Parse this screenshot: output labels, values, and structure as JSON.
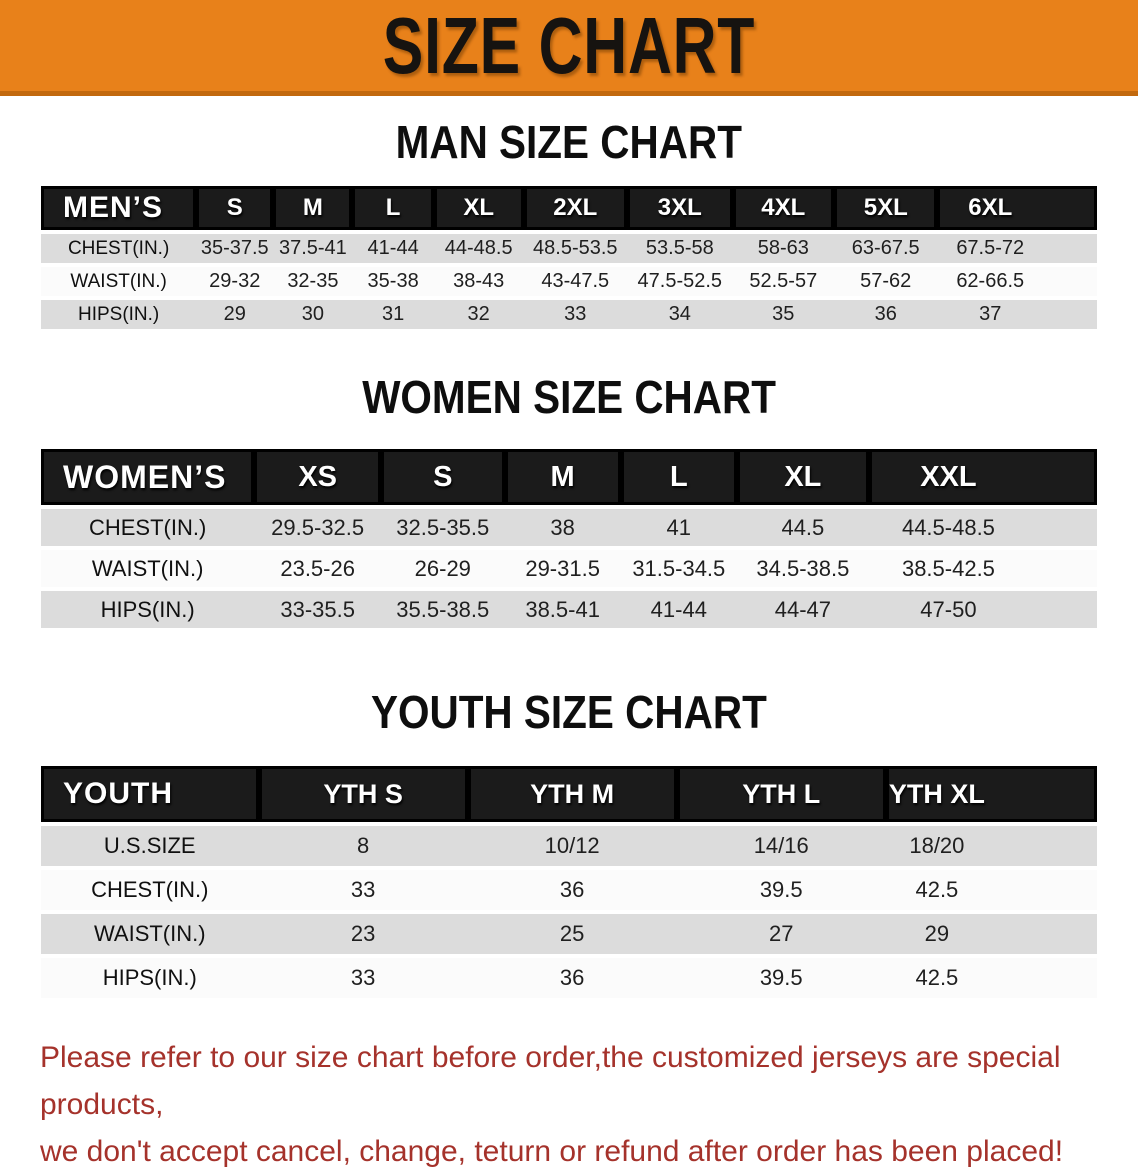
{
  "banner": {
    "title": "SIZE CHART"
  },
  "colors": {
    "banner_orange": "#E8811A",
    "banner_border": "#C2690E",
    "header_black": "#1B1B1B",
    "row_gray": "#DCDCDC",
    "row_white": "#FBFBFB",
    "note_red": "#A5322B"
  },
  "sections": {
    "men": {
      "title": "MAN SIZE CHART",
      "table": {
        "columns": [
          "MEN’S",
          "S",
          "M",
          "L",
          "XL",
          "2XL",
          "3XL",
          "4XL",
          "5XL",
          "6XL"
        ],
        "rows": [
          {
            "label": "CHEST(IN.)",
            "values": [
              "35-37.5",
              "37.5-41",
              "41-44",
              "44-48.5",
              "48.5-53.5",
              "53.5-58",
              "58-63",
              "63-67.5",
              "67.5-72"
            ]
          },
          {
            "label": "WAIST(IN.)",
            "values": [
              "29-32",
              "32-35",
              "35-38",
              "38-43",
              "43-47.5",
              "47.5-52.5",
              "52.5-57",
              "57-62",
              "62-66.5"
            ]
          },
          {
            "label": "HIPS(IN.)",
            "values": [
              "29",
              "30",
              "31",
              "32",
              "33",
              "34",
              "35",
              "36",
              "37"
            ]
          }
        ]
      }
    },
    "women": {
      "title": "WOMEN SIZE CHART",
      "table": {
        "columns": [
          "WOMEN’S",
          "XS",
          "S",
          "M",
          "L",
          "XL",
          "XXL"
        ],
        "rows": [
          {
            "label": "CHEST(IN.)",
            "values": [
              "29.5-32.5",
              "32.5-35.5",
              "38",
              "41",
              "44.5",
              "44.5-48.5"
            ]
          },
          {
            "label": "WAIST(IN.)",
            "values": [
              "23.5-26",
              "26-29",
              "29-31.5",
              "31.5-34.5",
              "34.5-38.5",
              "38.5-42.5"
            ]
          },
          {
            "label": "HIPS(IN.)",
            "values": [
              "33-35.5",
              "35.5-38.5",
              "38.5-41",
              "41-44",
              "44-47",
              "47-50"
            ]
          }
        ]
      }
    },
    "youth": {
      "title": "YOUTH SIZE CHART",
      "table": {
        "columns": [
          "YOUTH",
          "YTH S",
          "YTH M",
          "YTH L",
          "YTH XL"
        ],
        "rows": [
          {
            "label": "U.S.SIZE",
            "values": [
              "8",
              "10/12",
              "14/16",
              "18/20"
            ]
          },
          {
            "label": "CHEST(IN.)",
            "values": [
              "33",
              "36",
              "39.5",
              "42.5"
            ]
          },
          {
            "label": "WAIST(IN.)",
            "values": [
              "23",
              "25",
              "27",
              "29"
            ]
          },
          {
            "label": "HIPS(IN.)",
            "values": [
              "33",
              "36",
              "39.5",
              "42.5"
            ]
          }
        ]
      }
    }
  },
  "footer": {
    "line1": "Please refer to our size chart before order,the customized jerseys are special products,",
    "line2": "we don't accept cancel, change, teturn or refund after order has been placed!"
  }
}
